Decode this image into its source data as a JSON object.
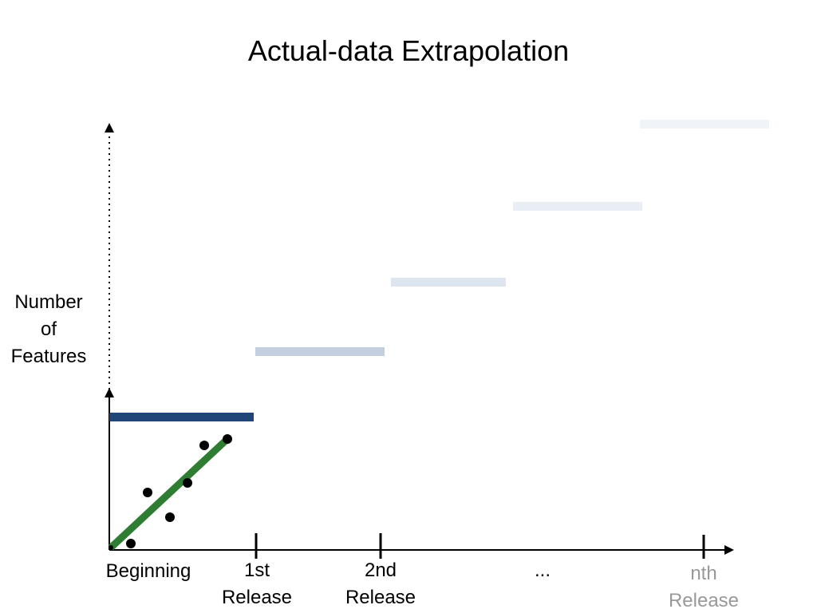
{
  "slide": {
    "title": "Actual-data Extrapolation",
    "y_axis_label": [
      "Number",
      "of",
      "Features"
    ],
    "x_labels": [
      {
        "id": "beginning",
        "lines": [
          "Beginning"
        ]
      },
      {
        "id": "release-1",
        "lines": [
          "1st",
          "Release"
        ]
      },
      {
        "id": "release-2",
        "lines": [
          "2nd",
          "Release"
        ]
      },
      {
        "id": "ellipsis",
        "lines": [
          "..."
        ]
      },
      {
        "id": "release-n",
        "lines": [
          "nth",
          "Release"
        ]
      }
    ],
    "release_level_bars": [
      {
        "release": "1st",
        "color": "#1f4676"
      },
      {
        "release": "2nd",
        "color": "#c2cfdf"
      },
      {
        "release": "3rd",
        "color": "#dde5ef"
      },
      {
        "release": "4th",
        "color": "#e9eef5"
      },
      {
        "release": "nth",
        "color": "#f0f3f8"
      }
    ],
    "data_points_count": 7,
    "trend_line_color": "#2e7d32",
    "axis_color": "#000000",
    "faded_label_color": "#999999"
  }
}
